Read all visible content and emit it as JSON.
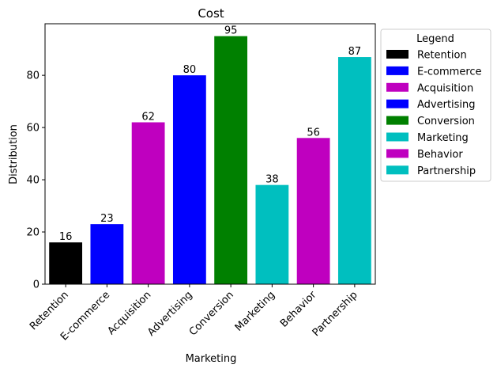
{
  "chart_data": {
    "type": "bar",
    "title": "Cost",
    "xlabel": "Marketing",
    "ylabel": "Distribution",
    "categories": [
      "Retention",
      "E-commerce",
      "Acquisition",
      "Advertising",
      "Conversion",
      "Marketing",
      "Behavior",
      "Partnership"
    ],
    "values": [
      16,
      23,
      62,
      80,
      95,
      38,
      56,
      87
    ],
    "colors": [
      "#000000",
      "#0000ff",
      "#bf00bf",
      "#0000ff",
      "#008000",
      "#00bfbf",
      "#bf00bf",
      "#00bfbf"
    ],
    "ylim": [
      0,
      99.75
    ],
    "yticks": [
      0,
      20,
      40,
      60,
      80
    ],
    "grid": false,
    "legend": {
      "title": "Legend",
      "position": "outside-right",
      "entries": [
        "Retention",
        "E-commerce",
        "Acquisition",
        "Advertising",
        "Conversion",
        "Marketing",
        "Behavior",
        "Partnership"
      ]
    }
  }
}
